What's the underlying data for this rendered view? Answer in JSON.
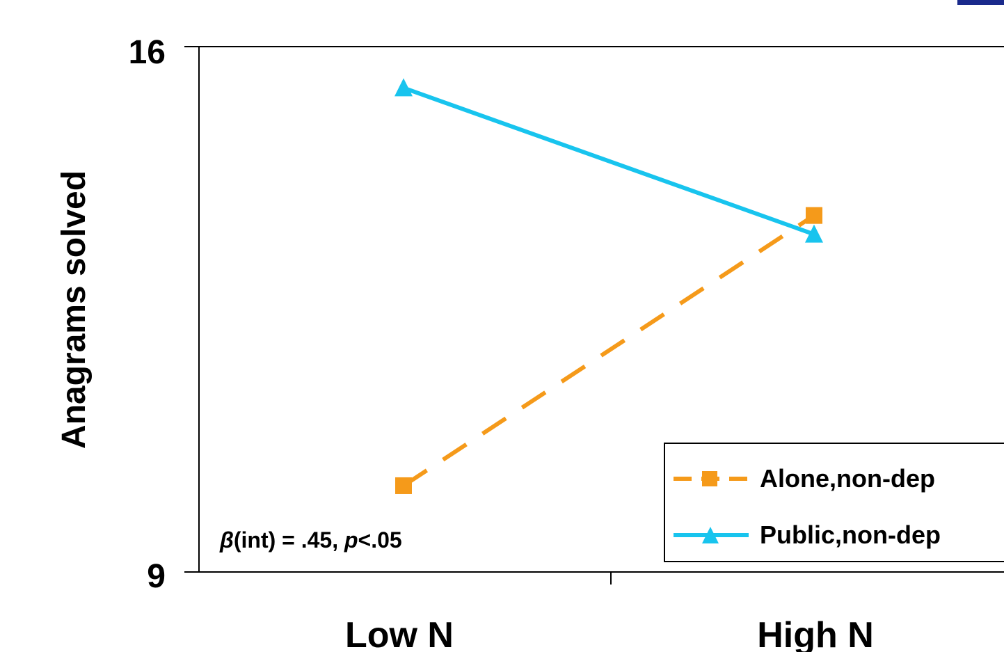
{
  "chart_data": {
    "type": "line",
    "categories": [
      "Low N",
      "High N"
    ],
    "ylabel": "Anagrams solved",
    "xlabel": "",
    "ylim": [
      9,
      16
    ],
    "yticks": [
      "16",
      "9"
    ],
    "series": [
      {
        "name": "Alone,non-dep",
        "values": [
          10.15,
          13.75
        ],
        "color": "#f59a1a",
        "dash": true,
        "marker": "square"
      },
      {
        "name": "Public,non-dep",
        "values": [
          15.45,
          13.5
        ],
        "color": "#18c4ee",
        "dash": false,
        "marker": "triangle"
      }
    ],
    "annotation": {
      "beta": "β",
      "rest1": "(int) = .45, ",
      "p": "p",
      "rest2": "<.05"
    },
    "legend_position": "bottom-right",
    "grid": false
  }
}
